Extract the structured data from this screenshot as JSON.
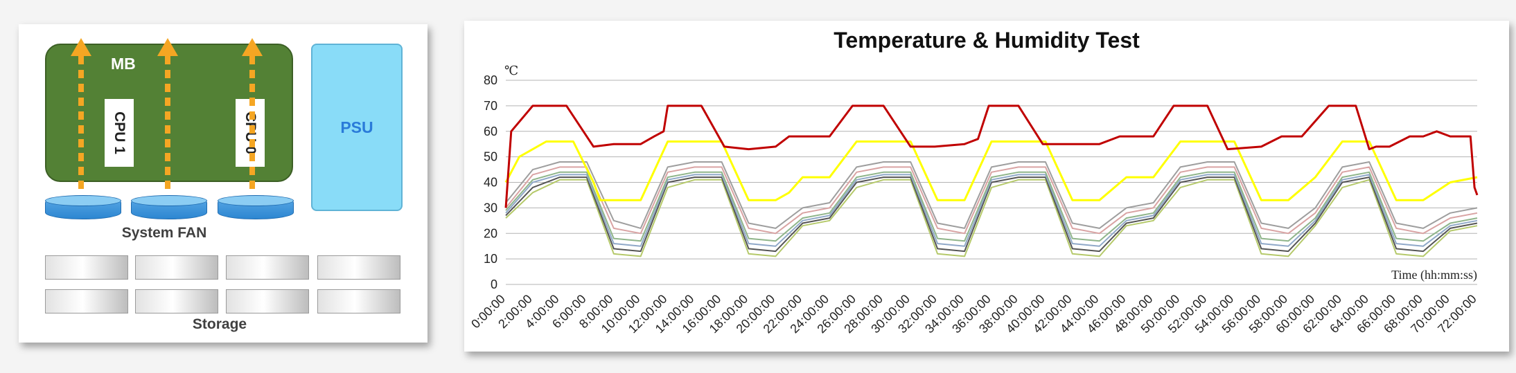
{
  "diagram": {
    "mb_label": "MB",
    "cpu1_label": "CPU 1",
    "cpu0_label": "CPU 0",
    "psu_label": "PSU",
    "fan_label": "System FAN",
    "storage_label": "Storage",
    "colors": {
      "mb": "#538135",
      "psu": "#89dcf8",
      "psu_text": "#2a7bd9",
      "airflow": "#f5a623",
      "fan": "#2d86d1"
    }
  },
  "chart_data": {
    "type": "line",
    "title": "Temperature & Humidity Test",
    "ylabel": "℃",
    "xlabel": "Time (hh:mm:ss)",
    "ylim": [
      0,
      80
    ],
    "yticks": [
      0,
      10,
      20,
      30,
      40,
      50,
      60,
      70,
      80
    ],
    "xlim": [
      0,
      72
    ],
    "x_tick_labels": [
      "0:00:00",
      "2:00:00",
      "4:00:00",
      "6:00:00",
      "8:00:00",
      "10:00:00",
      "12:00:00",
      "14:00:00",
      "16:00:00",
      "18:00:00",
      "20:00:00",
      "22:00:00",
      "24:00:00",
      "26:00:00",
      "28:00:00",
      "30:00:00",
      "32:00:00",
      "34:00:00",
      "36:00:00",
      "38:00:00",
      "40:00:00",
      "42:00:00",
      "44:00:00",
      "46:00:00",
      "48:00:00",
      "50:00:00",
      "52:00:00",
      "54:00:00",
      "56:00:00",
      "58:00:00",
      "60:00:00",
      "62:00:00",
      "64:00:00",
      "66:00:00",
      "68:00:00",
      "70:00:00",
      "72:00:00"
    ],
    "grid": "horizontal",
    "series": [
      {
        "color": "#c00000",
        "width": 3,
        "x": [
          0,
          0.4,
          2,
          4.5,
          6.5,
          8,
          10,
          11,
          11.7,
          12,
          14.5,
          16.2,
          18,
          20,
          21,
          24,
          25.7,
          28,
          30,
          31.8,
          34,
          35,
          35.8,
          38,
          39.8,
          42,
          44,
          45.5,
          48,
          49.5,
          52,
          53.5,
          56,
          57.5,
          59,
          61,
          63,
          64,
          64.5,
          65.5,
          67,
          68,
          69,
          70,
          71,
          71.5,
          71.8,
          72
        ],
        "y": [
          30,
          60,
          70,
          70,
          54,
          55,
          55,
          58,
          60,
          70,
          70,
          54,
          53,
          54,
          58,
          58,
          70,
          70,
          54,
          54,
          55,
          57,
          70,
          70,
          55,
          55,
          55,
          58,
          58,
          70,
          70,
          53,
          54,
          58,
          58,
          70,
          70,
          53,
          54,
          54,
          58,
          58,
          60,
          58,
          58,
          58,
          38,
          35
        ]
      },
      {
        "color": "#ffff00",
        "width": 3,
        "x": [
          0,
          1,
          3,
          5,
          6.5,
          7,
          9,
          10,
          12,
          14,
          16,
          18,
          20,
          21,
          22,
          24,
          26,
          28,
          30,
          32,
          34,
          36,
          38,
          40,
          42,
          44,
          46,
          48,
          50,
          52,
          54,
          56,
          58,
          60,
          62,
          64,
          66,
          68,
          70,
          72
        ],
        "y": [
          40,
          50,
          56,
          56,
          40,
          33,
          33,
          33,
          56,
          56,
          56,
          33,
          33,
          36,
          42,
          42,
          56,
          56,
          56,
          33,
          33,
          56,
          56,
          56,
          33,
          33,
          42,
          42,
          56,
          56,
          56,
          33,
          33,
          42,
          56,
          56,
          33,
          33,
          40,
          42
        ]
      },
      {
        "color": "#9e9e9e",
        "width": 2,
        "x": [
          0,
          2,
          4,
          6,
          8,
          10,
          12,
          14,
          16,
          18,
          20,
          22,
          24,
          26,
          28,
          30,
          32,
          34,
          36,
          38,
          40,
          42,
          44,
          46,
          48,
          50,
          52,
          54,
          56,
          58,
          60,
          62,
          64,
          66,
          68,
          70,
          72
        ],
        "y": [
          32,
          45,
          48,
          48,
          25,
          22,
          46,
          48,
          48,
          24,
          22,
          30,
          32,
          46,
          48,
          48,
          24,
          22,
          46,
          48,
          48,
          24,
          22,
          30,
          32,
          46,
          48,
          48,
          24,
          22,
          30,
          46,
          48,
          24,
          22,
          28,
          30
        ]
      },
      {
        "color": "#d9a3a3",
        "width": 2,
        "x": [
          0,
          2,
          4,
          6,
          8,
          10,
          12,
          14,
          16,
          18,
          20,
          22,
          24,
          26,
          28,
          30,
          32,
          34,
          36,
          38,
          40,
          42,
          44,
          46,
          48,
          50,
          52,
          54,
          56,
          58,
          60,
          62,
          64,
          66,
          68,
          70,
          72
        ],
        "y": [
          30,
          43,
          46,
          46,
          22,
          20,
          44,
          46,
          46,
          22,
          20,
          28,
          30,
          44,
          46,
          46,
          22,
          20,
          44,
          46,
          46,
          22,
          20,
          28,
          30,
          44,
          46,
          46,
          22,
          20,
          28,
          44,
          46,
          22,
          20,
          26,
          28
        ]
      },
      {
        "color": "#8fb58a",
        "width": 2,
        "x": [
          0,
          2,
          4,
          6,
          8,
          10,
          12,
          14,
          16,
          18,
          20,
          22,
          24,
          26,
          28,
          30,
          32,
          34,
          36,
          38,
          40,
          42,
          44,
          46,
          48,
          50,
          52,
          54,
          56,
          58,
          60,
          62,
          64,
          66,
          68,
          70,
          72
        ],
        "y": [
          29,
          41,
          44,
          44,
          18,
          17,
          42,
          44,
          44,
          18,
          17,
          26,
          28,
          42,
          44,
          44,
          18,
          17,
          42,
          44,
          44,
          18,
          17,
          26,
          28,
          42,
          44,
          44,
          18,
          17,
          26,
          42,
          44,
          18,
          17,
          24,
          26
        ]
      },
      {
        "color": "#8fa8c8",
        "width": 2,
        "x": [
          0,
          2,
          4,
          6,
          8,
          10,
          12,
          14,
          16,
          18,
          20,
          22,
          24,
          26,
          28,
          30,
          32,
          34,
          36,
          38,
          40,
          42,
          44,
          46,
          48,
          50,
          52,
          54,
          56,
          58,
          60,
          62,
          64,
          66,
          68,
          70,
          72
        ],
        "y": [
          28,
          40,
          43,
          43,
          16,
          15,
          41,
          43,
          43,
          16,
          15,
          25,
          27,
          41,
          43,
          43,
          16,
          15,
          41,
          43,
          43,
          16,
          15,
          25,
          27,
          41,
          43,
          43,
          16,
          15,
          25,
          41,
          43,
          16,
          15,
          23,
          25
        ]
      },
      {
        "color": "#555555",
        "width": 2,
        "x": [
          0,
          2,
          4,
          6,
          8,
          10,
          12,
          14,
          16,
          18,
          20,
          22,
          24,
          26,
          28,
          30,
          32,
          34,
          36,
          38,
          40,
          42,
          44,
          46,
          48,
          50,
          52,
          54,
          56,
          58,
          60,
          62,
          64,
          66,
          68,
          70,
          72
        ],
        "y": [
          27,
          38,
          42,
          42,
          14,
          13,
          40,
          42,
          42,
          14,
          13,
          24,
          26,
          40,
          42,
          42,
          14,
          13,
          40,
          42,
          42,
          14,
          13,
          24,
          26,
          40,
          42,
          42,
          14,
          13,
          24,
          40,
          42,
          14,
          13,
          22,
          24
        ]
      },
      {
        "color": "#b5c96a",
        "width": 2,
        "x": [
          0,
          2,
          4,
          6,
          8,
          10,
          12,
          14,
          16,
          18,
          20,
          22,
          24,
          26,
          28,
          30,
          32,
          34,
          36,
          38,
          40,
          42,
          44,
          46,
          48,
          50,
          52,
          54,
          56,
          58,
          60,
          62,
          64,
          66,
          68,
          70,
          72
        ],
        "y": [
          26,
          36,
          41,
          41,
          12,
          11,
          38,
          41,
          41,
          12,
          11,
          23,
          25,
          38,
          41,
          41,
          12,
          11,
          38,
          41,
          41,
          12,
          11,
          23,
          25,
          38,
          41,
          41,
          12,
          11,
          23,
          38,
          41,
          12,
          11,
          21,
          23
        ]
      }
    ]
  }
}
